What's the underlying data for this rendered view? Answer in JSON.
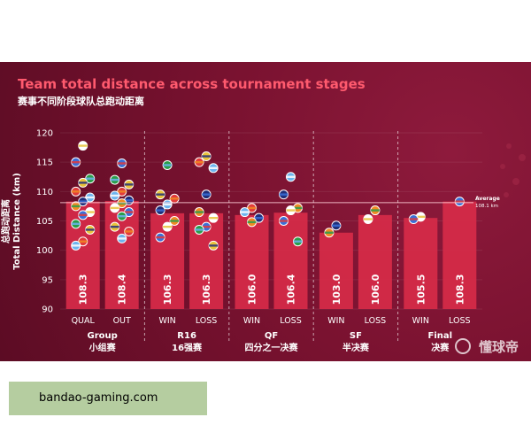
{
  "title": "Team total distance across tournament stages",
  "subtitle": "赛事不同阶段球队总跑动距离",
  "watermark": "懂球帝",
  "footer": "bandao-gaming.com",
  "colors": {
    "background": "#7a1230",
    "bar": "#d42a48",
    "title": "#ff5a6e",
    "average_line": "#ffd0d8"
  },
  "chart_data": {
    "type": "bar",
    "ylabel": "Total Distance (km)",
    "ylabel_cn": "总跑动距离",
    "ylim": [
      90,
      120
    ],
    "yticks": [
      90,
      95,
      100,
      105,
      110,
      115,
      120
    ],
    "average": {
      "value": 108.1,
      "label": "Average",
      "sublabel": "108.1 km"
    },
    "groups": [
      {
        "name": "Group",
        "name_cn": "小组赛",
        "bars": [
          {
            "category": "QUAL",
            "value": 108.3,
            "value_label": "108.3"
          },
          {
            "category": "OUT",
            "value": 108.4,
            "value_label": "108.4"
          }
        ]
      },
      {
        "name": "R16",
        "name_cn": "16强赛",
        "bars": [
          {
            "category": "WIN",
            "value": 106.3,
            "value_label": "106.3"
          },
          {
            "category": "LOSS",
            "value": 106.3,
            "value_label": "106.3"
          }
        ]
      },
      {
        "name": "QF",
        "name_cn": "四分之一决赛",
        "bars": [
          {
            "category": "WIN",
            "value": 106.0,
            "value_label": "106.0"
          },
          {
            "category": "LOSS",
            "value": 106.4,
            "value_label": "106.4"
          }
        ]
      },
      {
        "name": "SF",
        "name_cn": "半决赛",
        "bars": [
          {
            "category": "WIN",
            "value": 103.0,
            "value_label": "103.0"
          },
          {
            "category": "LOSS",
            "value": 106.0,
            "value_label": "106.0"
          }
        ]
      },
      {
        "name": "Final",
        "name_cn": "决赛",
        "bars": [
          {
            "category": "WIN",
            "value": 105.5,
            "value_label": "105.5"
          },
          {
            "category": "LOSS",
            "value": 108.3,
            "value_label": "108.3"
          }
        ]
      }
    ],
    "team_markers": [
      {
        "bar": 0,
        "values": [
          117.8,
          115.0,
          112.2,
          111.5,
          110.0,
          109.0,
          108.3,
          107.5,
          106.5,
          106.0,
          104.5,
          103.5,
          101.5,
          100.8
        ]
      },
      {
        "bar": 1,
        "values": [
          114.8,
          112.0,
          111.2,
          110.0,
          109.3,
          108.5,
          108.0,
          107.2,
          106.5,
          105.8,
          104.0,
          103.2,
          102.0
        ]
      },
      {
        "bar": 2,
        "values": [
          114.5,
          109.5,
          108.8,
          107.8,
          106.8,
          105.0,
          104.0,
          102.2
        ]
      },
      {
        "bar": 3,
        "values": [
          116.0,
          115.0,
          114.0,
          109.5,
          106.5,
          105.5,
          104.0,
          103.5,
          100.8
        ]
      },
      {
        "bar": 4,
        "values": [
          107.2,
          106.5,
          105.5,
          104.8
        ]
      },
      {
        "bar": 5,
        "values": [
          112.5,
          109.5,
          107.2,
          106.8,
          105.0,
          101.5
        ]
      },
      {
        "bar": 6,
        "values": [
          104.2,
          103.0
        ]
      },
      {
        "bar": 7,
        "values": [
          106.8,
          105.3
        ]
      },
      {
        "bar": 8,
        "values": [
          105.7,
          105.3
        ]
      },
      {
        "bar": 9,
        "values": [
          108.3
        ]
      }
    ]
  }
}
